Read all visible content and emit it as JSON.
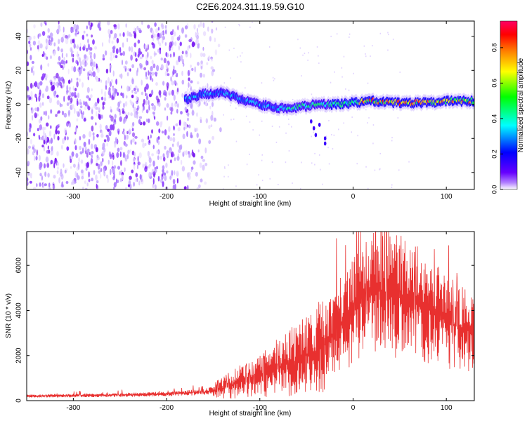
{
  "title": "C2E6.2024.311.19.59.G10",
  "chart_data": [
    {
      "type": "heatmap",
      "title": "C2E6.2024.311.19.59.G10",
      "xlabel": "Height of straight line (km)",
      "ylabel": "Frequency (Hz)",
      "xlim": [
        -350,
        130
      ],
      "ylim": [
        -50,
        49
      ],
      "xticks": [
        -300,
        -200,
        -100,
        0,
        100
      ],
      "xtick_labels": [
        "-300",
        "-200",
        "-100",
        "0",
        "100"
      ],
      "yticks": [
        -40,
        -20,
        0,
        20,
        40
      ],
      "ytick_labels": [
        "-40",
        "-20",
        "0",
        "20",
        "40"
      ],
      "colorbar": {
        "label": "Normalized spectral amplitude",
        "range": [
          0,
          0.95
        ],
        "ticks": [
          0.0,
          0.2,
          0.4,
          0.6,
          0.8
        ],
        "tick_labels": [
          "0.0",
          "0.2",
          "0.4",
          "0.6",
          "0.8"
        ],
        "colors": [
          "#ffffff",
          "#6600ff",
          "#0000ff",
          "#00ffff",
          "#00ff00",
          "#ffff00",
          "#ff8000",
          "#ff0000",
          "#ff0066"
        ]
      },
      "noise_region_x": [
        -350,
        -140
      ],
      "ridge": [
        {
          "x": -180,
          "y": 3
        },
        {
          "x": -160,
          "y": 6
        },
        {
          "x": -140,
          "y": 7
        },
        {
          "x": -120,
          "y": 3
        },
        {
          "x": -100,
          "y": 0
        },
        {
          "x": -80,
          "y": -2
        },
        {
          "x": -60,
          "y": -2
        },
        {
          "x": -40,
          "y": 0
        },
        {
          "x": -20,
          "y": 0
        },
        {
          "x": 0,
          "y": 1
        },
        {
          "x": 20,
          "y": 2
        },
        {
          "x": 40,
          "y": 1
        },
        {
          "x": 60,
          "y": 1
        },
        {
          "x": 80,
          "y": 1
        },
        {
          "x": 100,
          "y": 2
        },
        {
          "x": 130,
          "y": 2
        }
      ],
      "grid": false,
      "legend": "none"
    },
    {
      "type": "line",
      "xlabel": "Height of straight line (km)",
      "ylabel": "SNR (10 * v/v)",
      "xlim": [
        -350,
        130
      ],
      "ylim": [
        0,
        7500
      ],
      "xticks": [
        -300,
        -200,
        -100,
        0,
        100
      ],
      "xtick_labels": [
        "-300",
        "-200",
        "-100",
        "0",
        "100"
      ],
      "yticks": [
        0,
        2000,
        4000,
        6000
      ],
      "ytick_labels": [
        "0",
        "2000",
        "4000",
        "6000"
      ],
      "color": "#e8302f",
      "envelope": [
        {
          "x": -350,
          "y": 200
        },
        {
          "x": -300,
          "y": 230
        },
        {
          "x": -250,
          "y": 250
        },
        {
          "x": -200,
          "y": 300
        },
        {
          "x": -160,
          "y": 380
        },
        {
          "x": -140,
          "y": 550
        },
        {
          "x": -120,
          "y": 850
        },
        {
          "x": -100,
          "y": 1100
        },
        {
          "x": -80,
          "y": 1500
        },
        {
          "x": -60,
          "y": 1800
        },
        {
          "x": -40,
          "y": 2200
        },
        {
          "x": -25,
          "y": 2800
        },
        {
          "x": -15,
          "y": 3400
        },
        {
          "x": -5,
          "y": 3600
        },
        {
          "x": 5,
          "y": 4400
        },
        {
          "x": 15,
          "y": 4700
        },
        {
          "x": 30,
          "y": 4900
        },
        {
          "x": 50,
          "y": 4600
        },
        {
          "x": 70,
          "y": 4300
        },
        {
          "x": 90,
          "y": 3800
        },
        {
          "x": 110,
          "y": 3300
        },
        {
          "x": 130,
          "y": 3000
        }
      ],
      "peaks": [
        {
          "x": -18,
          "y": 7200
        },
        {
          "x": -8,
          "y": 6900
        },
        {
          "x": 8,
          "y": 7500
        },
        {
          "x": 25,
          "y": 6700
        },
        {
          "x": 45,
          "y": 6200
        },
        {
          "x": 85,
          "y": 5200
        }
      ],
      "grid": false,
      "legend": "none"
    }
  ]
}
